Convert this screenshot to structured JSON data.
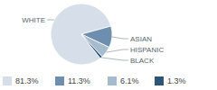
{
  "chart_data": {
    "type": "pie",
    "categories": [
      "WHITE",
      "ASIAN",
      "HISPANIC",
      "BLACK"
    ],
    "values": [
      81.3,
      11.3,
      6.1,
      1.3
    ],
    "value_labels": [
      "81.3%",
      "11.3%",
      "6.1%",
      "1.3%"
    ],
    "colors": [
      "#d6dfe9",
      "#6d8eae",
      "#a6bbce",
      "#2e5578"
    ],
    "legend": "bottom"
  }
}
